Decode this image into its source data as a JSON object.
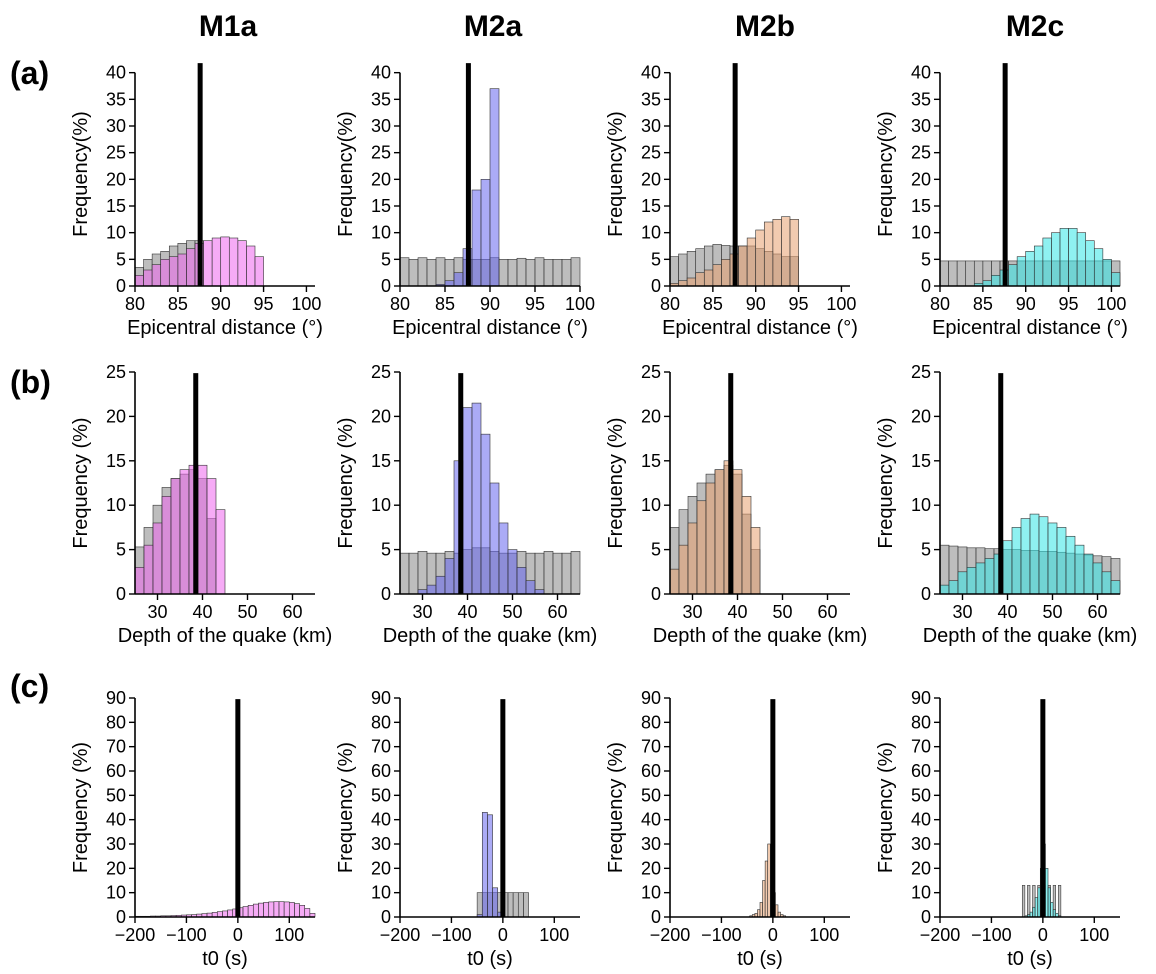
{
  "figure": {
    "models": [
      {
        "name": "M1a",
        "color": "#ff33ff"
      },
      {
        "name": "M2a",
        "color": "#1a1aff"
      },
      {
        "name": "M2b",
        "color": "#800000"
      },
      {
        "name": "M2c",
        "color": "#33ffff"
      }
    ],
    "row_labels": [
      "(a)",
      "(b)",
      "(c)"
    ]
  },
  "colors": {
    "prior": "#999999",
    "M1a": "#ee66ee",
    "M2a": "#6666ee",
    "M2b": "#e8a070",
    "M2c": "#33e6e6",
    "true_value_line": "#000000"
  },
  "chart_data": [
    {
      "type": "bar",
      "panel": "a-M1a",
      "xlabel": "Epicentral distance (°)",
      "ylabel": "Frequency(%)",
      "xlim": [
        80,
        101
      ],
      "ylim": [
        0,
        42
      ],
      "xticks": [
        80,
        85,
        90,
        95,
        100
      ],
      "yticks": [
        0,
        5,
        10,
        15,
        20,
        25,
        30,
        35,
        40
      ],
      "true_value": 87.6,
      "bin_width": 1,
      "series": [
        {
          "kind": "prior",
          "x": [
            80,
            81,
            82,
            83,
            84,
            85,
            86,
            87
          ],
          "values": [
            3.5,
            5,
            6,
            6.5,
            7.5,
            8,
            8.5,
            8.5
          ]
        },
        {
          "kind": "posterior",
          "x": [
            80,
            81,
            82,
            83,
            84,
            85,
            86,
            87,
            88,
            89,
            90,
            91,
            92,
            93,
            94
          ],
          "values": [
            2,
            3,
            4,
            5,
            5.5,
            6,
            7,
            8,
            8.5,
            9,
            9.2,
            9,
            8.5,
            7.5,
            5.5
          ]
        }
      ]
    },
    {
      "type": "bar",
      "panel": "a-M2a",
      "xlabel": "Epicentral distance (°)",
      "ylabel": "Frequency(%)",
      "xlim": [
        80,
        100
      ],
      "ylim": [
        0,
        42
      ],
      "xticks": [
        80,
        85,
        90,
        95,
        100
      ],
      "yticks": [
        0,
        5,
        10,
        15,
        20,
        25,
        30,
        35,
        40
      ],
      "true_value": 87.6,
      "bin_width": 1,
      "series": [
        {
          "kind": "prior",
          "x": [
            80,
            81,
            82,
            83,
            84,
            85,
            86,
            87,
            88,
            89,
            90,
            91,
            92,
            93,
            94,
            95,
            96,
            97,
            98,
            99
          ],
          "values": [
            5.3,
            5,
            5.3,
            5,
            5.3,
            5,
            5.3,
            5,
            5,
            5,
            5.3,
            5,
            5,
            5.2,
            5,
            5.3,
            5,
            5,
            5,
            5.3
          ]
        },
        {
          "kind": "posterior",
          "x": [
            84,
            85,
            86,
            87,
            88,
            89,
            90
          ],
          "values": [
            0.3,
            1,
            2.5,
            7,
            18,
            20,
            37
          ]
        }
      ]
    },
    {
      "type": "bar",
      "panel": "a-M2b",
      "xlabel": "Epicentral distance (°)",
      "ylabel": "Frequency(%)",
      "xlim": [
        80,
        101
      ],
      "ylim": [
        0,
        42
      ],
      "xticks": [
        80,
        85,
        90,
        95,
        100
      ],
      "yticks": [
        0,
        5,
        10,
        15,
        20,
        25,
        30,
        35,
        40
      ],
      "true_value": 87.6,
      "bin_width": 1,
      "series": [
        {
          "kind": "prior",
          "x": [
            80,
            81,
            82,
            83,
            84,
            85,
            86,
            87,
            88,
            89,
            90,
            91,
            92,
            93,
            94
          ],
          "values": [
            5.5,
            6,
            6.5,
            7,
            7.5,
            7.8,
            7.6,
            7.5,
            7.5,
            7.5,
            7,
            6.5,
            6,
            5.5,
            5.5
          ]
        },
        {
          "kind": "posterior",
          "x": [
            80,
            81,
            82,
            83,
            84,
            85,
            86,
            87,
            88,
            89,
            90,
            91,
            92,
            93,
            94
          ],
          "values": [
            0.5,
            1,
            1.5,
            2.5,
            3,
            4,
            5,
            6,
            7.5,
            9,
            10.5,
            12,
            12.5,
            13,
            12.5
          ]
        }
      ]
    },
    {
      "type": "bar",
      "panel": "a-M2c",
      "xlabel": "Epicentral distance (°)",
      "ylabel": "Frequency(%)",
      "xlim": [
        80,
        101
      ],
      "ylim": [
        0,
        42
      ],
      "xticks": [
        80,
        85,
        90,
        95,
        100
      ],
      "yticks": [
        0,
        5,
        10,
        15,
        20,
        25,
        30,
        35,
        40
      ],
      "true_value": 87.6,
      "bin_width": 1,
      "series": [
        {
          "kind": "prior",
          "x": [
            80,
            81,
            82,
            83,
            84,
            85,
            86,
            87,
            88,
            89,
            90,
            91,
            92,
            93,
            94,
            95,
            96,
            97,
            98,
            99,
            100
          ],
          "values": [
            4.7,
            4.7,
            4.7,
            4.7,
            4.7,
            4.7,
            4.7,
            4.7,
            4.7,
            4.7,
            4.7,
            4.7,
            4.7,
            4.7,
            4.7,
            4.7,
            4.7,
            4.7,
            4.7,
            4.7,
            4.7
          ]
        },
        {
          "kind": "posterior",
          "x": [
            84,
            85,
            86,
            87,
            88,
            89,
            90,
            91,
            92,
            93,
            94,
            95,
            96,
            97,
            98,
            99,
            100
          ],
          "values": [
            0.5,
            1,
            2,
            3,
            4,
            5.5,
            6.5,
            7.5,
            9,
            10,
            10.8,
            10.8,
            10,
            8.5,
            7,
            5,
            2.5
          ]
        }
      ]
    },
    {
      "type": "bar",
      "panel": "b-M1a",
      "xlabel": "Depth of the quake (km)",
      "ylabel": "Frequency (%)",
      "xlim": [
        25,
        65
      ],
      "ylim": [
        0,
        25
      ],
      "xticks": [
        30,
        40,
        50,
        60
      ],
      "yticks": [
        0,
        5,
        10,
        15,
        20,
        25
      ],
      "true_value": 38.5,
      "bin_width": 2,
      "series": [
        {
          "kind": "prior",
          "x": [
            25,
            27,
            29,
            31,
            33,
            35,
            37,
            39,
            41
          ],
          "values": [
            5.3,
            7.5,
            10,
            12,
            13,
            13.5,
            14,
            13,
            8.5
          ]
        },
        {
          "kind": "posterior",
          "x": [
            25,
            27,
            29,
            31,
            33,
            35,
            37,
            39,
            41,
            43
          ],
          "values": [
            3,
            5.5,
            8,
            11,
            13,
            14,
            14.5,
            14.5,
            13,
            9.5
          ]
        }
      ]
    },
    {
      "type": "bar",
      "panel": "b-M2a",
      "xlabel": "Depth of the quake (km)",
      "ylabel": "Frequency (%)",
      "xlim": [
        25,
        65
      ],
      "ylim": [
        0,
        25
      ],
      "xticks": [
        30,
        40,
        50,
        60
      ],
      "yticks": [
        0,
        5,
        10,
        15,
        20,
        25
      ],
      "true_value": 38.5,
      "bin_width": 2,
      "series": [
        {
          "kind": "prior",
          "x": [
            25,
            27,
            29,
            31,
            33,
            35,
            37,
            39,
            41,
            43,
            45,
            47,
            49,
            51,
            53,
            55,
            57,
            59,
            61,
            63
          ],
          "values": [
            4.6,
            4.6,
            4.8,
            4.6,
            4.6,
            4.8,
            4.6,
            5,
            5.2,
            5.2,
            4.8,
            4.6,
            4.6,
            4.8,
            4.6,
            4.6,
            4.8,
            4.6,
            4.6,
            4.8
          ]
        },
        {
          "kind": "posterior",
          "x": [
            29,
            31,
            33,
            35,
            37,
            39,
            41,
            43,
            45,
            47,
            49,
            51,
            53,
            55
          ],
          "values": [
            0.5,
            1,
            2,
            4,
            15,
            21,
            21.5,
            18,
            12.5,
            8,
            5,
            3,
            1.5,
            0.5
          ]
        }
      ]
    },
    {
      "type": "bar",
      "panel": "b-M2b",
      "xlabel": "Depth of the quake (km)",
      "ylabel": "Frequency (%)",
      "xlim": [
        25,
        65
      ],
      "ylim": [
        0,
        25
      ],
      "xticks": [
        30,
        40,
        50,
        60
      ],
      "yticks": [
        0,
        5,
        10,
        15,
        20,
        25
      ],
      "true_value": 38.5,
      "bin_width": 2,
      "series": [
        {
          "kind": "prior",
          "x": [
            25,
            27,
            29,
            31,
            33,
            35,
            37,
            39,
            41,
            43
          ],
          "values": [
            7.5,
            9.5,
            11,
            12.5,
            13.5,
            14,
            14.5,
            13.5,
            9,
            5
          ]
        },
        {
          "kind": "posterior",
          "x": [
            25,
            27,
            29,
            31,
            33,
            35,
            37,
            39,
            41,
            43
          ],
          "values": [
            2.8,
            5.5,
            8,
            10.5,
            12.5,
            14,
            15,
            14,
            11,
            7.5
          ]
        }
      ]
    },
    {
      "type": "bar",
      "panel": "b-M2c",
      "xlabel": "Depth of the quake (km)",
      "ylabel": "Frequency (%)",
      "xlim": [
        25,
        65
      ],
      "ylim": [
        0,
        25
      ],
      "xticks": [
        30,
        40,
        50,
        60
      ],
      "yticks": [
        0,
        5,
        10,
        15,
        20,
        25
      ],
      "true_value": 38.5,
      "bin_width": 2,
      "series": [
        {
          "kind": "prior",
          "x": [
            25,
            27,
            29,
            31,
            33,
            35,
            37,
            39,
            41,
            43,
            45,
            47,
            49,
            51,
            53,
            55,
            57,
            59,
            61,
            63
          ],
          "values": [
            5.5,
            5.4,
            5.3,
            5.2,
            5.2,
            5.1,
            5.1,
            5,
            5,
            4.9,
            4.9,
            4.8,
            4.8,
            4.7,
            4.6,
            4.5,
            4.4,
            4.3,
            4.2,
            4
          ]
        },
        {
          "kind": "posterior",
          "x": [
            25,
            27,
            29,
            31,
            33,
            35,
            37,
            39,
            41,
            43,
            45,
            47,
            49,
            51,
            53,
            55,
            57,
            59,
            61,
            63
          ],
          "values": [
            1,
            1.5,
            2.5,
            3,
            3.5,
            4,
            4.5,
            6,
            7.5,
            8.5,
            9,
            8.7,
            8,
            7.5,
            6.5,
            5.5,
            4.5,
            3.5,
            2.5,
            1.5
          ]
        }
      ]
    },
    {
      "type": "bar",
      "panel": "c-M1a",
      "xlabel": "t0 (s)",
      "ylabel": "Frequency (%)",
      "xlim": [
        -200,
        150
      ],
      "ylim": [
        0,
        90
      ],
      "xticks": [
        -200,
        -100,
        0,
        100
      ],
      "yticks": [
        0,
        10,
        20,
        30,
        40,
        50,
        60,
        70,
        80,
        90
      ],
      "true_value": 0,
      "bin_width": 10,
      "series": [
        {
          "kind": "prior",
          "x": [],
          "values": []
        },
        {
          "kind": "posterior",
          "x": [
            -200,
            -190,
            -180,
            -170,
            -160,
            -150,
            -140,
            -130,
            -120,
            -110,
            -100,
            -90,
            -80,
            -70,
            -60,
            -50,
            -40,
            -30,
            -20,
            -10,
            0,
            10,
            20,
            30,
            40,
            50,
            60,
            70,
            80,
            90,
            100,
            110,
            120,
            130,
            140
          ],
          "values": [
            0.3,
            0.3,
            0.3,
            0.4,
            0.4,
            0.5,
            0.5,
            0.6,
            0.7,
            0.8,
            0.9,
            1,
            1.2,
            1.4,
            1.6,
            1.9,
            2.2,
            2.5,
            2.9,
            3.3,
            3.8,
            4.3,
            4.8,
            5.3,
            5.7,
            6,
            6.2,
            6.3,
            6.3,
            6.2,
            6,
            5.5,
            4.8,
            3.5,
            1.5
          ]
        }
      ]
    },
    {
      "type": "bar",
      "panel": "c-M2a",
      "xlabel": "t0 (s)",
      "ylabel": "Frequency (%)",
      "xlim": [
        -200,
        150
      ],
      "ylim": [
        0,
        90
      ],
      "xticks": [
        -200,
        -100,
        0,
        100
      ],
      "yticks": [
        0,
        10,
        20,
        30,
        40,
        50,
        60,
        70,
        80,
        90
      ],
      "true_value": 0,
      "bin_width": 10,
      "series": [
        {
          "kind": "prior",
          "x": [
            -50,
            -40,
            -30,
            -20,
            -10,
            0,
            10,
            20,
            30,
            40
          ],
          "values": [
            10,
            10,
            10,
            10,
            10,
            10,
            10,
            10,
            10,
            10
          ]
        },
        {
          "kind": "posterior",
          "x": [
            -50,
            -40,
            -30,
            -20,
            -10
          ],
          "values": [
            1,
            43,
            42,
            12,
            2
          ]
        }
      ]
    },
    {
      "type": "bar",
      "panel": "c-M2b",
      "xlabel": "t0 (s)",
      "ylabel": "Frequency (%)",
      "xlim": [
        -200,
        150
      ],
      "ylim": [
        0,
        90
      ],
      "xticks": [
        -200,
        -100,
        0,
        100
      ],
      "yticks": [
        0,
        10,
        20,
        30,
        40,
        50,
        60,
        70,
        80,
        90
      ],
      "true_value": 0,
      "bin_width": 5,
      "series": [
        {
          "kind": "prior",
          "x": [],
          "values": []
        },
        {
          "kind": "posterior",
          "x": [
            -45,
            -40,
            -35,
            -30,
            -25,
            -20,
            -15,
            -10,
            -5,
            0,
            5,
            10,
            15,
            20
          ],
          "values": [
            0.5,
            1,
            1.5,
            3,
            6,
            15,
            23,
            30,
            20,
            10,
            5,
            2,
            1,
            0.5
          ]
        }
      ]
    },
    {
      "type": "bar",
      "panel": "c-M2c",
      "xlabel": "t0 (s)",
      "ylabel": "Frequency (%)",
      "xlim": [
        -200,
        150
      ],
      "ylim": [
        0,
        90
      ],
      "xticks": [
        -200,
        -100,
        0,
        100
      ],
      "yticks": [
        0,
        10,
        20,
        30,
        40,
        50,
        60,
        70,
        80,
        90
      ],
      "true_value": 0,
      "bin_width": 5,
      "series": [
        {
          "kind": "prior",
          "x": [
            -40,
            -30,
            -20,
            -10,
            0,
            10,
            20,
            30
          ],
          "values": [
            13,
            13,
            13,
            13,
            13,
            13,
            13,
            13
          ]
        },
        {
          "kind": "posterior",
          "x": [
            -35,
            -30,
            -25,
            -20,
            -15,
            -10,
            -5,
            0,
            5,
            10,
            15,
            20,
            25,
            30
          ],
          "values": [
            0.5,
            1,
            2,
            4,
            8,
            12,
            20,
            30,
            20,
            12,
            6,
            3,
            1.5,
            0.5
          ]
        }
      ]
    }
  ]
}
